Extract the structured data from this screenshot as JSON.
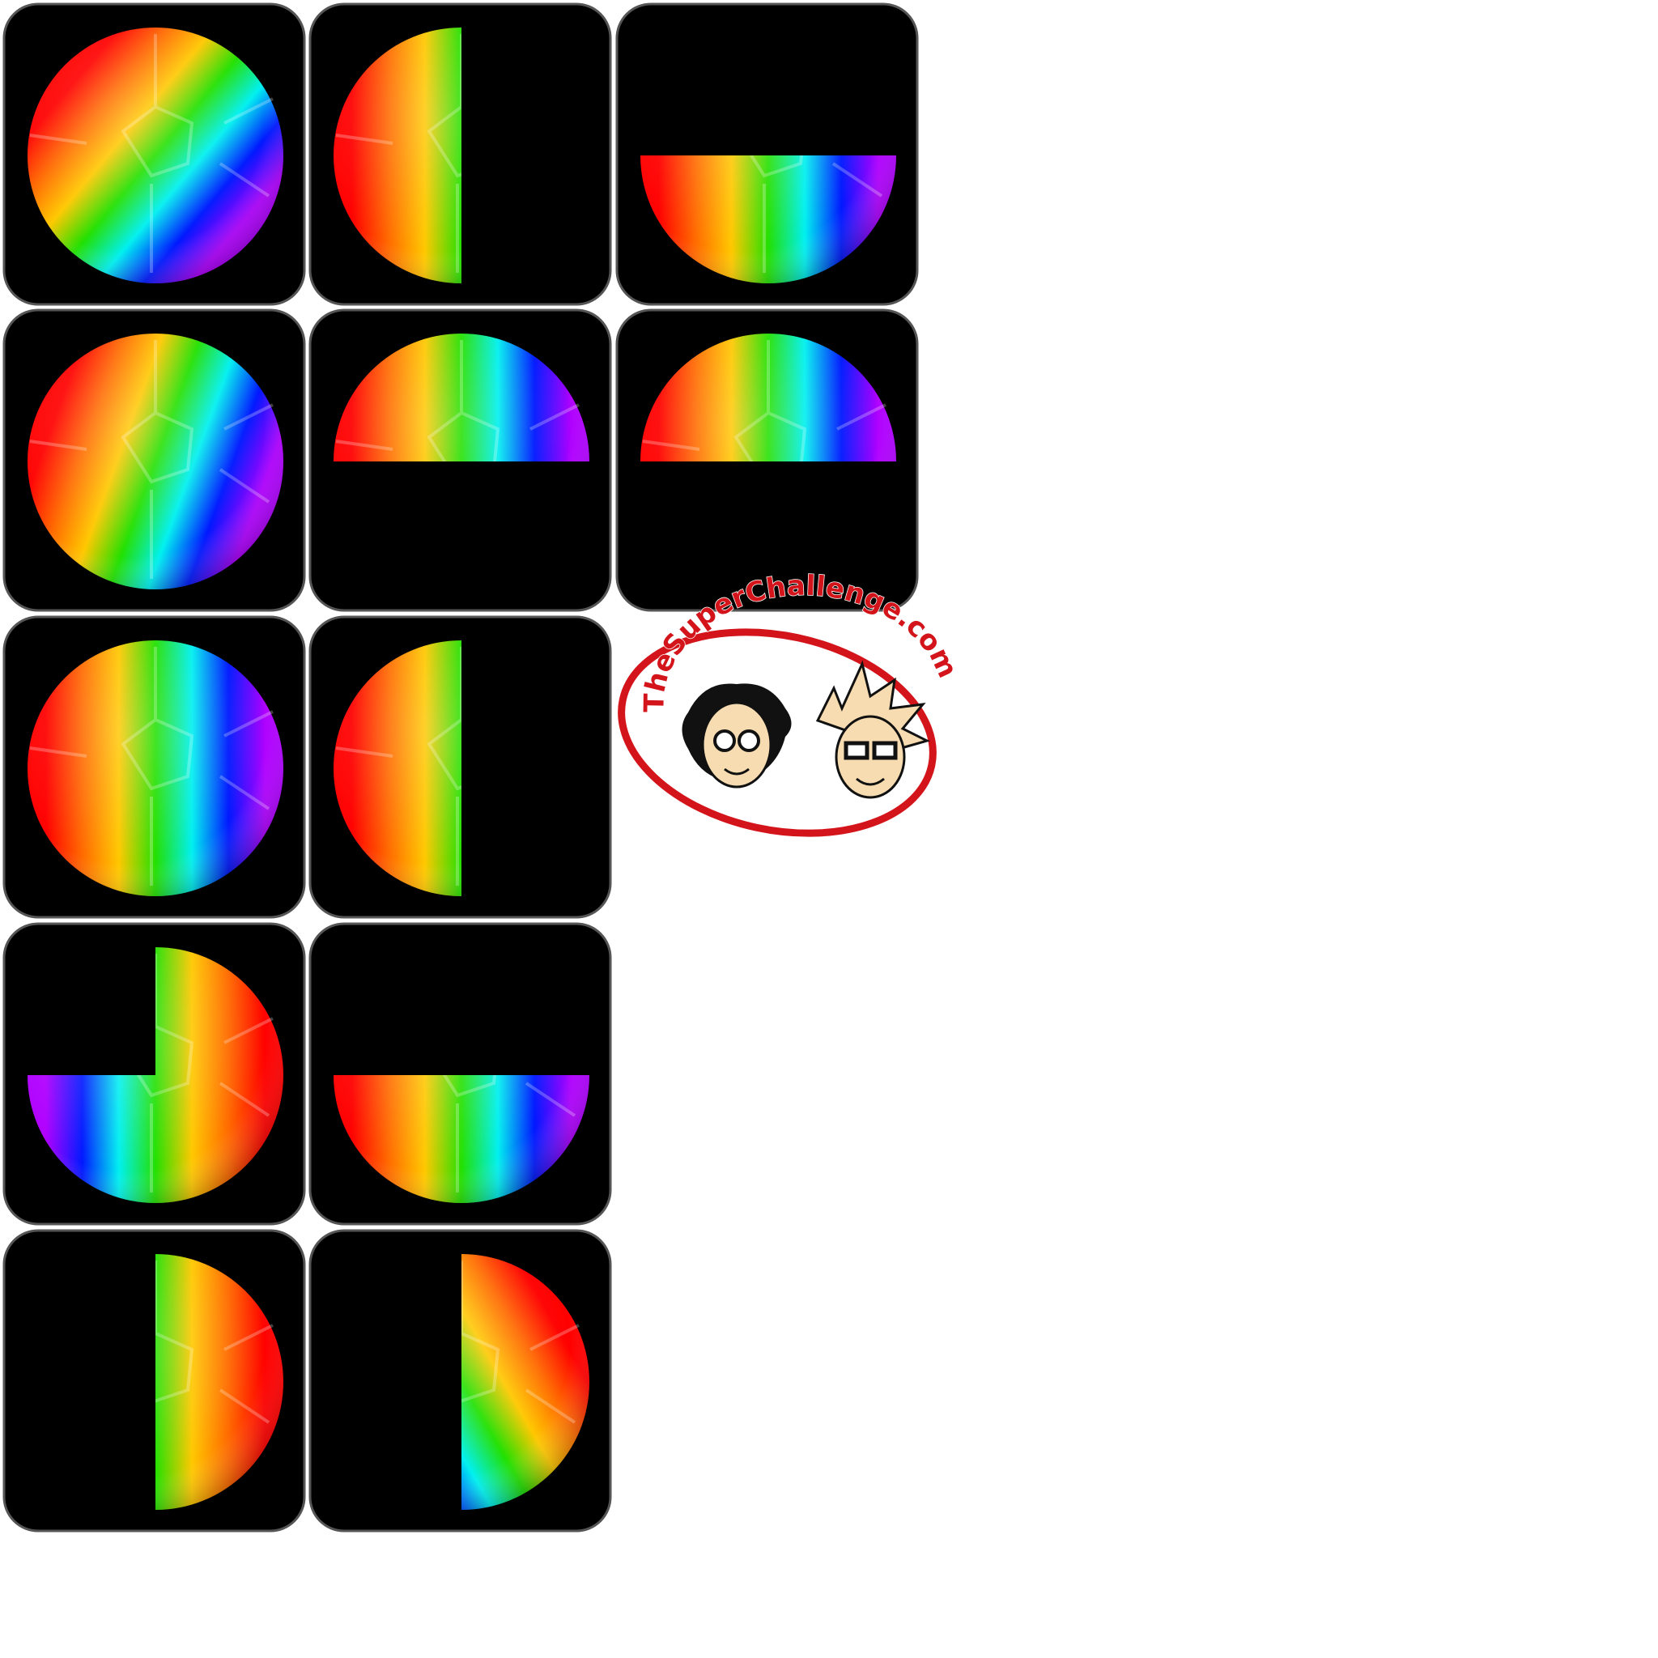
{
  "logo": {
    "text": "TheSuperChallenge.com"
  }
}
